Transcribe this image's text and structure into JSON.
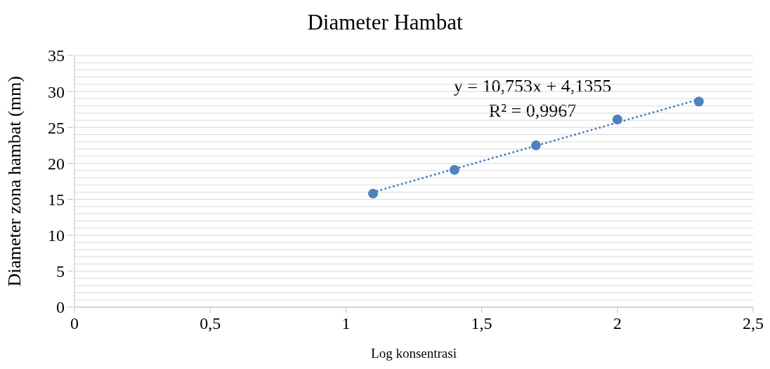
{
  "chart_data": {
    "type": "scatter",
    "title": "Diameter Hambat",
    "xlabel": "Log konsentrasi",
    "ylabel": "Diameter zona hambat (mm)",
    "x": [
      1.1,
      1.4,
      1.7,
      2.0,
      2.3
    ],
    "series": [
      {
        "color": "#4f81bd",
        "values": [
          15.8,
          19.1,
          22.5,
          26.1,
          28.6
        ],
        "marker": "circle"
      },
      {
        "type": "line",
        "color": "#4f81bd",
        "x": [
          1.1,
          2.3
        ],
        "values": [
          16.0,
          28.9
        ],
        "line_style": "dotted",
        "marker": "none"
      }
    ],
    "annotations": [
      "y = 10,753x + 4,1355",
      "R² = 0,9967"
    ],
    "xlim": [
      0,
      2.5
    ],
    "xticks": [
      0,
      {
        "value": 0.5,
        "label": "0,5"
      },
      1,
      {
        "value": 1.5,
        "label": "1,5"
      },
      2,
      {
        "value": 2.5,
        "label": "2,5"
      }
    ],
    "ylim": [
      0,
      35
    ],
    "yticks": [
      0,
      {
        "value": 1,
        "label": null
      },
      {
        "value": 2,
        "label": null
      },
      {
        "value": 3,
        "label": null
      },
      {
        "value": 4,
        "label": null
      },
      5,
      {
        "value": 6,
        "label": null
      },
      {
        "value": 7,
        "label": null
      },
      {
        "value": 8,
        "label": null
      },
      {
        "value": 9,
        "label": null
      },
      10,
      {
        "value": 11,
        "label": null
      },
      {
        "value": 12,
        "label": null
      },
      {
        "value": 13,
        "label": null
      },
      {
        "value": 14,
        "label": null
      },
      15,
      {
        "value": 16,
        "label": null
      },
      {
        "value": 17,
        "label": null
      },
      {
        "value": 18,
        "label": null
      },
      {
        "value": 19,
        "label": null
      },
      20,
      {
        "value": 21,
        "label": null
      },
      {
        "value": 22,
        "label": null
      },
      {
        "value": 23,
        "label": null
      },
      {
        "value": 24,
        "label": null
      },
      25,
      {
        "value": 26,
        "label": null
      },
      {
        "value": 27,
        "label": null
      },
      {
        "value": 28,
        "label": null
      },
      {
        "value": 29,
        "label": null
      },
      30,
      {
        "value": 31,
        "label": null
      },
      {
        "value": 32,
        "label": null
      },
      {
        "value": 33,
        "label": null
      },
      {
        "value": 34,
        "label": null
      },
      35
    ],
    "grid": "y"
  }
}
